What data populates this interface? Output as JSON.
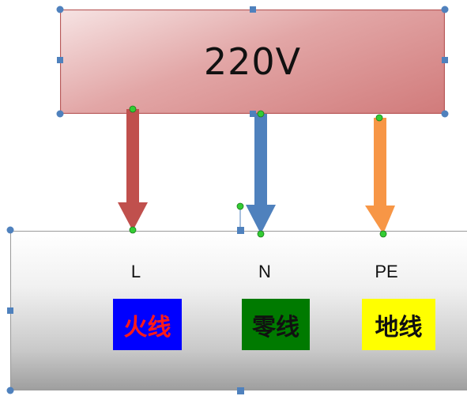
{
  "source": {
    "label": "220V"
  },
  "terminals": [
    {
      "id": "L",
      "label": "L",
      "wire_label": "火线",
      "wire_color": "#c0504d",
      "tag_bg": "#0000ff",
      "tag_fg": "#ff1a1a"
    },
    {
      "id": "N",
      "label": "N",
      "wire_label": "零线",
      "wire_color": "#4f81bd",
      "tag_bg": "#007a00",
      "tag_fg": "#111111"
    },
    {
      "id": "PE",
      "label": "PE",
      "wire_label": "地线",
      "wire_color": "#f79646",
      "tag_bg": "#ffff00",
      "tag_fg": "#111111"
    }
  ],
  "colors": {
    "selection_handle": "#4f81bd",
    "connection_point": "#33cc33"
  }
}
